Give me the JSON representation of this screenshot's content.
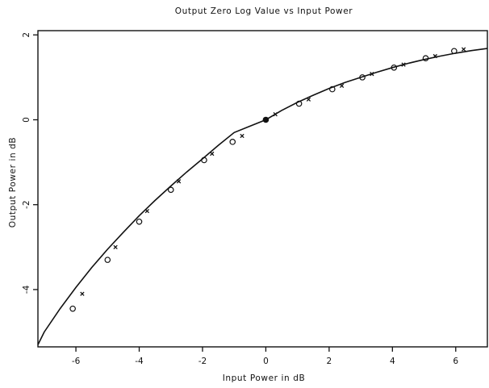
{
  "chart_data": {
    "type": "scatter",
    "title": "Output Zero Log Value vs Input Power",
    "xlabel": "Input Power in dB",
    "ylabel": "Output Power in dB",
    "xlim": [
      -7.2,
      7.0
    ],
    "ylim": [
      -5.35,
      2.1
    ],
    "xticks": [
      -6,
      -4,
      -2,
      0,
      2,
      4,
      6
    ],
    "xtick_labels": [
      "-6",
      "-4",
      "-2",
      "0",
      "2",
      "4",
      "6"
    ],
    "yticks": [
      -4,
      -2,
      0,
      2
    ],
    "ytick_labels": [
      "-4",
      "-2",
      "0",
      "2"
    ],
    "grid": false,
    "curve": {
      "x": [
        -7.2,
        -7.0,
        -6.5,
        -6.0,
        -5.5,
        -5.0,
        -4.5,
        -4.0,
        -3.5,
        -3.0,
        -2.5,
        -2.0,
        -1.5,
        -1.0,
        -0.5,
        0.0,
        0.5,
        1.0,
        1.5,
        2.0,
        2.5,
        3.0,
        3.5,
        4.0,
        4.5,
        5.0,
        5.5,
        6.0,
        6.5,
        7.0
      ],
      "y": [
        -5.3,
        -5.0,
        -4.45,
        -3.95,
        -3.48,
        -3.05,
        -2.65,
        -2.26,
        -1.9,
        -1.56,
        -1.23,
        -0.92,
        -0.6,
        -0.3,
        -0.15,
        0.0,
        0.22,
        0.41,
        0.58,
        0.74,
        0.88,
        1.0,
        1.12,
        1.23,
        1.33,
        1.42,
        1.5,
        1.57,
        1.63,
        1.68
      ]
    },
    "series": [
      {
        "marker": "circle",
        "x": [
          -6.1,
          -5.0,
          -4.0,
          -3.0,
          -1.95,
          -1.05,
          0.0,
          1.05,
          2.1,
          3.05,
          4.05,
          5.05,
          5.95
        ],
        "y": [
          -4.45,
          -3.3,
          -2.4,
          -1.65,
          -0.95,
          -0.52,
          0.0,
          0.38,
          0.72,
          1.0,
          1.23,
          1.45,
          1.62
        ]
      },
      {
        "marker": "cross",
        "x": [
          -5.8,
          -4.75,
          -3.75,
          -2.75,
          -1.7,
          -0.75,
          0.3,
          1.35,
          2.4,
          3.35,
          4.35,
          5.35,
          6.25
        ],
        "y": [
          -4.1,
          -3.0,
          -2.15,
          -1.45,
          -0.8,
          -0.38,
          0.13,
          0.48,
          0.8,
          1.08,
          1.3,
          1.5,
          1.66
        ]
      }
    ]
  }
}
